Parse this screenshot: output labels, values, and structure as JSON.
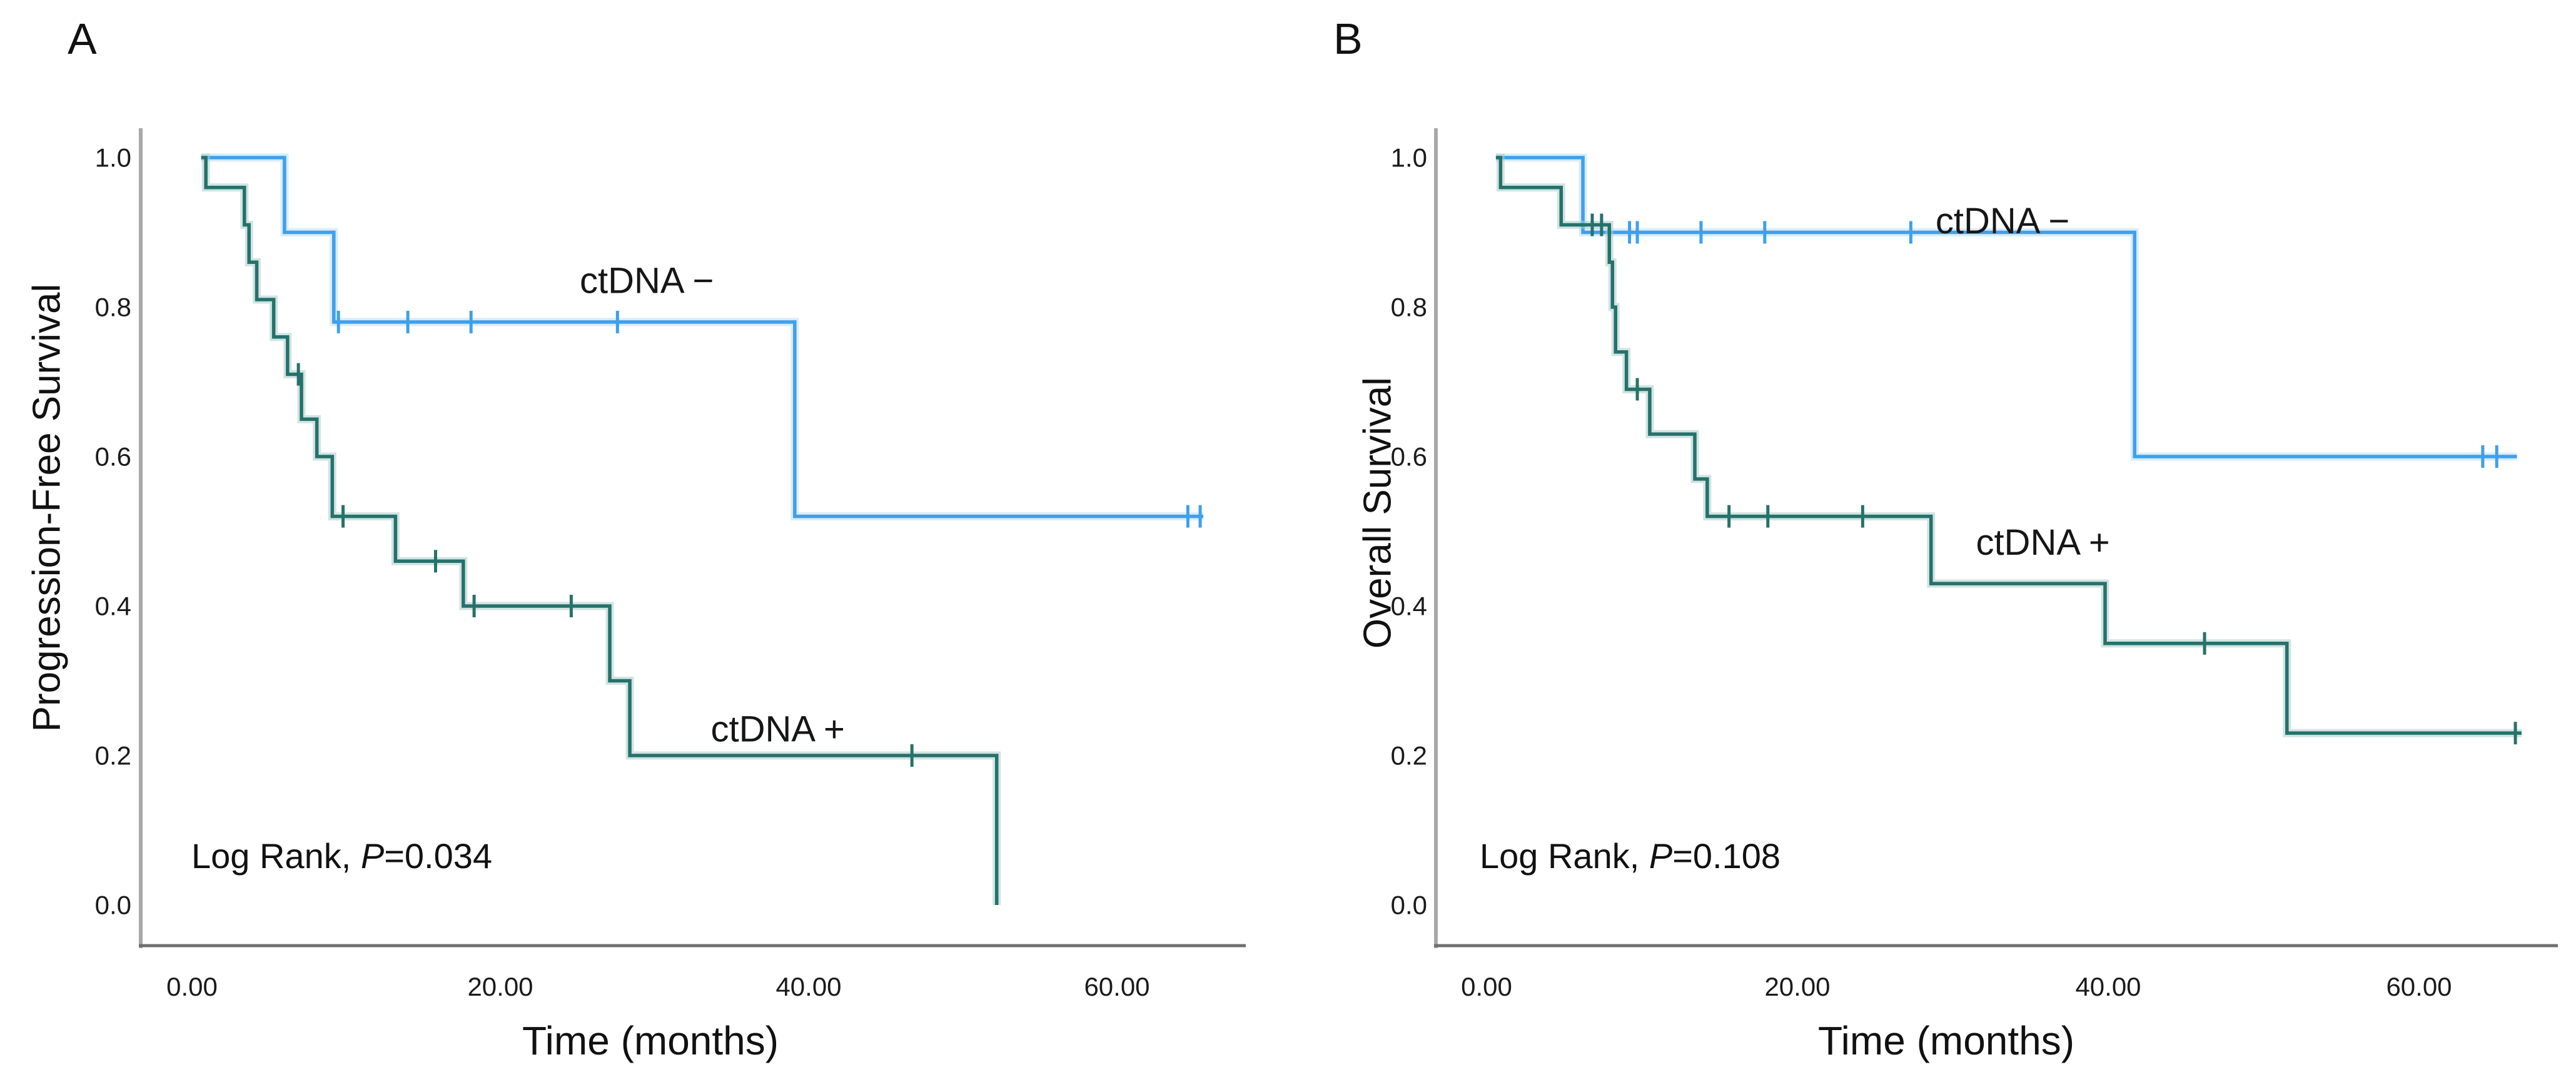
{
  "figure": {
    "background": "#ffffff",
    "axis_color_y": "#a8a8a8",
    "axis_color_x": "#6f6f6f",
    "text_color": "#1a1a1a"
  },
  "chart_data": [
    {
      "type": "line",
      "subtype": "kaplan_meier_step",
      "panel_label": "A",
      "xlabel": "Time (months)",
      "ylabel": "Progression-Free Survival",
      "xlim": [
        0,
        68
      ],
      "ylim": [
        0,
        1.0
      ],
      "grid": false,
      "legend_position": "in-plot-labels",
      "x_ticks": [
        {
          "v": 0,
          "label": "0.00"
        },
        {
          "v": 20,
          "label": "20.00"
        },
        {
          "v": 40,
          "label": "40.00"
        },
        {
          "v": 60,
          "label": "60.00"
        }
      ],
      "y_ticks": [
        {
          "v": 1.0,
          "label": "1.0"
        },
        {
          "v": 0.8,
          "label": "0.8"
        },
        {
          "v": 0.6,
          "label": "0.6"
        },
        {
          "v": 0.4,
          "label": "0.4"
        },
        {
          "v": 0.2,
          "label": "0.2"
        },
        {
          "v": 0.0,
          "label": "0.0"
        }
      ],
      "annotation": "Log Rank, P=0.034",
      "annotation_parts": {
        "prefix": "Log Rank, ",
        "p": "P",
        "rest": "=0.034"
      },
      "series": [
        {
          "name": "ctDNA −",
          "group": "ctdna_negative",
          "color": "#3fa0e9",
          "halo": "#b9dcf5",
          "start": 0.6,
          "steps": [
            [
              6.0,
              0.9
            ],
            [
              9.2,
              0.78
            ],
            [
              39.1,
              0.52
            ]
          ],
          "end": 65.6,
          "censors": [
            [
              9.5,
              0.78
            ],
            [
              14.0,
              0.78
            ],
            [
              18.1,
              0.78
            ],
            [
              27.6,
              0.78
            ],
            [
              64.6,
              0.52
            ],
            [
              65.4,
              0.52
            ]
          ],
          "label": {
            "t": 29.5,
            "v": 0.835
          }
        },
        {
          "name": "ctDNA +",
          "group": "ctdna_positive",
          "color": "#26716b",
          "halo": "#a9cdca",
          "start": 0.6,
          "steps": [
            [
              0.9,
              0.96
            ],
            [
              3.4,
              0.91
            ],
            [
              3.7,
              0.86
            ],
            [
              4.2,
              0.81
            ],
            [
              5.3,
              0.76
            ],
            [
              6.2,
              0.71
            ],
            [
              7.1,
              0.65
            ],
            [
              8.1,
              0.6
            ],
            [
              9.1,
              0.52
            ],
            [
              13.2,
              0.46
            ],
            [
              17.6,
              0.4
            ],
            [
              27.1,
              0.3
            ],
            [
              28.4,
              0.2
            ],
            [
              52.2,
              0.0
            ]
          ],
          "end": 52.2,
          "censors": [
            [
              6.9,
              0.71
            ],
            [
              9.8,
              0.52
            ],
            [
              15.8,
              0.46
            ],
            [
              18.3,
              0.4
            ],
            [
              24.6,
              0.4
            ],
            [
              46.7,
              0.2
            ]
          ],
          "label": {
            "t": 38.0,
            "v": 0.235
          }
        }
      ]
    },
    {
      "type": "line",
      "subtype": "kaplan_meier_step",
      "panel_label": "B",
      "xlabel": "Time (months)",
      "ylabel": "Overall Survival",
      "xlim": [
        0,
        68
      ],
      "ylim": [
        0,
        1.0
      ],
      "grid": false,
      "legend_position": "in-plot-labels",
      "x_ticks": [
        {
          "v": 0,
          "label": "0.00"
        },
        {
          "v": 20,
          "label": "20.00"
        },
        {
          "v": 40,
          "label": "40.00"
        },
        {
          "v": 60,
          "label": "60.00"
        }
      ],
      "y_ticks": [
        {
          "v": 1.0,
          "label": "1.0"
        },
        {
          "v": 0.8,
          "label": "0.8"
        },
        {
          "v": 0.6,
          "label": "0.6"
        },
        {
          "v": 0.4,
          "label": "0.4"
        },
        {
          "v": 0.2,
          "label": "0.2"
        },
        {
          "v": 0.0,
          "label": "0.0"
        }
      ],
      "annotation": "Log Rank, P=0.108",
      "annotation_parts": {
        "prefix": "Log Rank, ",
        "p": "P",
        "rest": "=0.108"
      },
      "series": [
        {
          "name": "ctDNA −",
          "group": "ctdna_negative",
          "color": "#3fa0e9",
          "halo": "#b9dcf5",
          "start": 0.6,
          "steps": [
            [
              6.2,
              0.9
            ],
            [
              41.7,
              0.6
            ]
          ],
          "end": 66.3,
          "censors": [
            [
              9.2,
              0.9
            ],
            [
              9.7,
              0.9
            ],
            [
              13.8,
              0.9
            ],
            [
              17.9,
              0.9
            ],
            [
              27.3,
              0.9
            ],
            [
              64.1,
              0.6
            ],
            [
              65.0,
              0.6
            ]
          ],
          "label": {
            "t": 33.2,
            "v": 0.915
          }
        },
        {
          "name": "ctDNA +",
          "group": "ctdna_positive",
          "color": "#26716b",
          "halo": "#a9cdca",
          "start": 0.6,
          "steps": [
            [
              0.9,
              0.96
            ],
            [
              4.8,
              0.91
            ],
            [
              7.9,
              0.86
            ],
            [
              8.1,
              0.8
            ],
            [
              8.3,
              0.74
            ],
            [
              9.0,
              0.69
            ],
            [
              10.5,
              0.63
            ],
            [
              13.4,
              0.57
            ],
            [
              14.2,
              0.52
            ],
            [
              28.6,
              0.43
            ],
            [
              39.8,
              0.35
            ],
            [
              51.5,
              0.23
            ]
          ],
          "end": 66.6,
          "censors": [
            [
              6.8,
              0.91
            ],
            [
              7.4,
              0.91
            ],
            [
              9.7,
              0.69
            ],
            [
              15.6,
              0.52
            ],
            [
              18.1,
              0.52
            ],
            [
              24.2,
              0.52
            ],
            [
              46.2,
              0.35
            ],
            [
              66.2,
              0.23
            ]
          ],
          "label": {
            "t": 35.8,
            "v": 0.485
          }
        }
      ]
    }
  ]
}
